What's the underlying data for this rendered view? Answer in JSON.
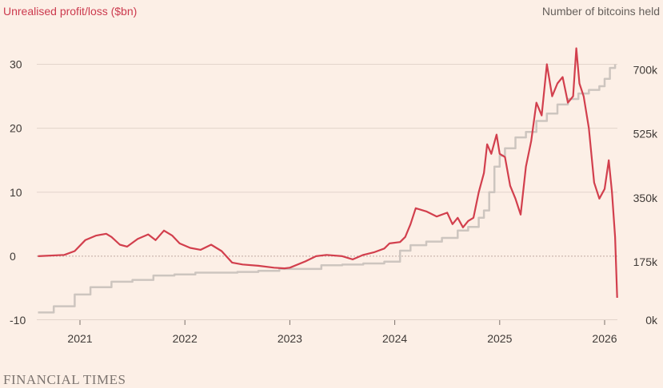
{
  "chart_data": {
    "type": "line",
    "title_left": "Unrealised profit/loss ($bn)",
    "title_right": "Number of bitcoins held",
    "source": "FINANCIAL TIMES",
    "x_range": [
      2020.6,
      2026.3
    ],
    "x_ticks": [
      2021,
      2022,
      2023,
      2024,
      2025,
      2026
    ],
    "x_tick_labels": [
      "2021",
      "2022",
      "2023",
      "2024",
      "2025",
      "2026"
    ],
    "y_left_range": [
      -10,
      32
    ],
    "y_left_ticks": [
      -10,
      0,
      10,
      20,
      30
    ],
    "y_left_tick_labels": [
      "-10",
      "0",
      "10",
      "20",
      "30"
    ],
    "y_right_range": [
      0,
      735
    ],
    "y_right_ticks": [
      0,
      175,
      350,
      525,
      700
    ],
    "y_right_tick_labels": [
      "0k",
      "175k",
      "350k",
      "525k",
      "700k"
    ],
    "colors": {
      "profit": "#d23f4d",
      "holdings": "#cdc5bf"
    },
    "series": [
      {
        "name": "Unrealised profit/loss ($bn)",
        "axis": "left",
        "x": [
          2020.6,
          2020.85,
          2020.95,
          2021.05,
          2021.15,
          2021.25,
          2021.3,
          2021.38,
          2021.45,
          2021.55,
          2021.65,
          2021.72,
          2021.8,
          2021.88,
          2021.95,
          2022.05,
          2022.15,
          2022.25,
          2022.35,
          2022.45,
          2022.55,
          2022.7,
          2022.85,
          2022.95,
          2023.0,
          2023.15,
          2023.25,
          2023.35,
          2023.5,
          2023.6,
          2023.7,
          2023.8,
          2023.9,
          2023.95,
          2024.05,
          2024.1,
          2024.15,
          2024.2,
          2024.3,
          2024.4,
          2024.5,
          2024.55,
          2024.6,
          2024.65,
          2024.7,
          2024.75,
          2024.8,
          2024.85,
          2024.88,
          2024.92,
          2024.97,
          2025.0,
          2025.05,
          2025.1,
          2025.15,
          2025.2,
          2025.25,
          2025.3,
          2025.35,
          2025.4,
          2025.45,
          2025.5,
          2025.55,
          2025.6,
          2025.65,
          2025.7,
          2025.73,
          2025.76,
          2025.8,
          2025.85,
          2025.9,
          2025.95,
          2026.0,
          2026.04,
          2026.07,
          2026.1,
          2026.12
        ],
        "values": [
          0,
          0.2,
          0.8,
          2.5,
          3.2,
          3.5,
          3.0,
          1.8,
          1.5,
          2.7,
          3.4,
          2.5,
          4.0,
          3.2,
          2.0,
          1.3,
          1.0,
          1.8,
          0.8,
          -1.0,
          -1.3,
          -1.5,
          -1.8,
          -1.9,
          -1.8,
          -0.8,
          0,
          0.2,
          0,
          -0.5,
          0.2,
          0.6,
          1.2,
          2.0,
          2.2,
          3.0,
          5.0,
          7.5,
          7.0,
          6.2,
          6.8,
          5.0,
          6.0,
          4.5,
          5.5,
          6.0,
          10.0,
          13.0,
          17.5,
          16.0,
          19.0,
          16.0,
          15.5,
          11.0,
          9.0,
          6.5,
          14.0,
          18.0,
          24.0,
          22.0,
          30.0,
          25.0,
          27.0,
          28.0,
          24.0,
          25.0,
          32.5,
          27.0,
          25.0,
          20.0,
          11.5,
          9.0,
          10.5,
          15.0,
          10.0,
          3.0,
          -6.5
        ]
      },
      {
        "name": "Number of bitcoins held",
        "axis": "right",
        "x": [
          2020.6,
          2020.7,
          2020.75,
          2020.8,
          2020.95,
          2021.1,
          2021.3,
          2021.5,
          2021.7,
          2021.9,
          2022.1,
          2022.3,
          2022.5,
          2022.7,
          2022.9,
          2023.1,
          2023.3,
          2023.5,
          2023.7,
          2023.9,
          2024.05,
          2024.15,
          2024.3,
          2024.45,
          2024.6,
          2024.7,
          2024.8,
          2024.85,
          2024.9,
          2024.95,
          2025.0,
          2025.05,
          2025.15,
          2025.25,
          2025.35,
          2025.45,
          2025.55,
          2025.65,
          2025.75,
          2025.85,
          2025.95,
          2026.0,
          2026.05,
          2026.1
        ],
        "values": [
          21,
          21,
          38,
          38,
          70,
          90,
          105,
          110,
          122,
          125,
          130,
          130,
          132,
          135,
          140,
          140,
          150,
          152,
          155,
          160,
          190,
          205,
          215,
          225,
          245,
          255,
          280,
          300,
          350,
          420,
          450,
          470,
          500,
          515,
          545,
          565,
          590,
          605,
          620,
          630,
          640,
          660,
          690,
          700
        ]
      }
    ]
  }
}
